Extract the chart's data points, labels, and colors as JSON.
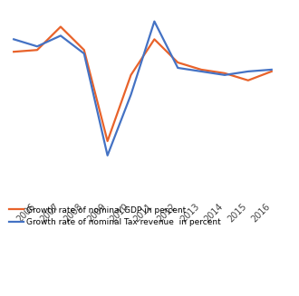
{
  "years": [
    2005,
    2006,
    2007,
    2008,
    2009,
    2010,
    2011,
    2012,
    2013,
    2014,
    2015,
    2016
  ],
  "gdp": [
    10.0,
    10.5,
    17.0,
    10.5,
    -15.0,
    3.5,
    13.5,
    7.0,
    5.0,
    4.0,
    2.0,
    4.5
  ],
  "tax": [
    13.5,
    11.5,
    14.5,
    9.5,
    -19.0,
    -2.0,
    18.5,
    5.5,
    4.5,
    3.5,
    4.5,
    5.0
  ],
  "gdp_color": "#E8622A",
  "tax_color": "#4472C4",
  "tick_labels": [
    "2006",
    "2007",
    "2008",
    "2009",
    "2010",
    "2011",
    "2012",
    "2013",
    "2014",
    "2015",
    "2016"
  ],
  "tick_positions": [
    2006,
    2007,
    2008,
    2009,
    2010,
    2011,
    2012,
    2013,
    2014,
    2015,
    2016
  ],
  "legend_gdp": "Growth rate of nominal GDP in percent",
  "legend_tax": "Growth rate of nominal Tax revenue  in percent",
  "ylim": [
    -25,
    22
  ],
  "xlim": [
    2004.8,
    2016.8
  ],
  "background_color": "#ffffff",
  "grid_color": "#d4d4d4",
  "grid_linewidth": 0.7,
  "line_linewidth": 1.6,
  "tick_fontsize": 7.0,
  "legend_fontsize": 6.5
}
